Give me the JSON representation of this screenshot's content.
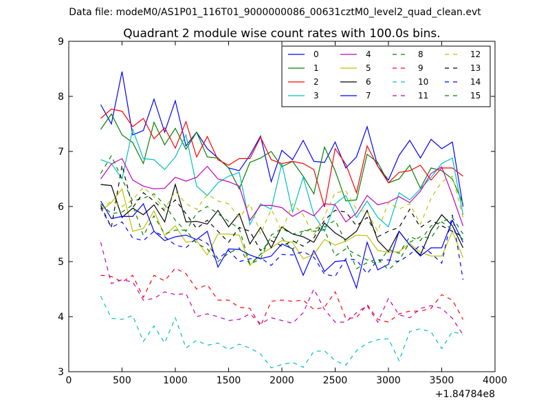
{
  "header": {
    "suptitle": "Data file: modeM0/AS1P01_116T01_9000000086_00631cztM0_level2_quad_clean.evt"
  },
  "chart_data": {
    "type": "line",
    "title": "Quadrant 2 module wise count rates with 100.0s bins.",
    "xlabel": "",
    "ylabel": "",
    "x_offset_label": "+1.84784e8",
    "xlim": [
      0,
      4000
    ],
    "ylim": [
      3,
      9
    ],
    "x_ticks": [
      0,
      500,
      1000,
      1500,
      2000,
      2500,
      3000,
      3500,
      4000
    ],
    "x_tick_labels": [
      "0",
      "500",
      "1000",
      "1500",
      "2000",
      "2500",
      "3000",
      "3500",
      "4000"
    ],
    "y_ticks": [
      3,
      4,
      5,
      6,
      7,
      8,
      9
    ],
    "y_tick_labels": [
      "3",
      "4",
      "5",
      "6",
      "7",
      "8",
      "9"
    ],
    "grid": false,
    "legend_position": "top-right",
    "x": [
      300,
      400,
      500,
      600,
      700,
      800,
      900,
      1000,
      1100,
      1200,
      1300,
      1400,
      1500,
      1600,
      1700,
      1800,
      1900,
      2000,
      2100,
      2200,
      2300,
      2400,
      2500,
      2600,
      2700,
      2800,
      2900,
      3000,
      3100,
      3200,
      3300,
      3400,
      3500,
      3600,
      3700
    ],
    "series": [
      {
        "name": "0",
        "color": "#0000ff",
        "dash": false,
        "values": [
          7.85,
          7.5,
          8.45,
          7.3,
          7.38,
          7.95,
          7.35,
          7.92,
          7.1,
          7.35,
          7.05,
          6.88,
          6.7,
          6.65,
          6.93,
          7.28,
          6.45,
          7.02,
          6.85,
          7.2,
          6.82,
          6.8,
          7.17,
          6.7,
          6.9,
          7.45,
          6.73,
          6.48,
          6.93,
          7.2,
          6.88,
          7.22,
          7.05,
          7.17,
          6.0
        ]
      },
      {
        "name": "1",
        "color": "#008000",
        "dash": false,
        "values": [
          7.4,
          7.68,
          7.3,
          7.16,
          6.78,
          7.53,
          7.12,
          7.42,
          7.04,
          7.35,
          6.9,
          6.88,
          6.7,
          6.32,
          6.8,
          6.88,
          7.0,
          6.72,
          6.82,
          6.55,
          6.23,
          7.08,
          6.65,
          6.1,
          6.12,
          6.95,
          6.8,
          6.43,
          6.5,
          6.75,
          6.33,
          6.7,
          6.65,
          6.5,
          6.05
        ]
      },
      {
        "name": "2",
        "color": "#ff0000",
        "dash": false,
        "values": [
          7.6,
          7.77,
          7.73,
          7.45,
          7.6,
          7.23,
          7.43,
          7.06,
          7.54,
          6.9,
          7.27,
          6.85,
          6.75,
          6.87,
          6.87,
          7.26,
          6.85,
          6.78,
          6.82,
          6.78,
          6.67,
          5.99,
          7.05,
          6.77,
          6.25,
          7.1,
          6.73,
          6.43,
          6.62,
          6.65,
          6.75,
          6.48,
          6.7,
          6.7,
          6.55
        ]
      },
      {
        "name": "3",
        "color": "#00bfbf",
        "dash": false,
        "values": [
          6.85,
          6.78,
          6.5,
          7.4,
          6.87,
          6.85,
          6.67,
          6.9,
          7.3,
          6.37,
          6.2,
          6.43,
          6.55,
          6.62,
          5.67,
          6.05,
          5.95,
          6.78,
          5.9,
          6.53,
          5.85,
          5.55,
          6.05,
          6.2,
          5.8,
          6.1,
          5.8,
          5.63,
          6.25,
          6.12,
          6.32,
          6.53,
          6.78,
          6.88,
          5.85
        ]
      },
      {
        "name": "4",
        "color": "#bf00bf",
        "dash": false,
        "values": [
          6.5,
          6.77,
          6.87,
          6.48,
          6.37,
          6.32,
          6.33,
          6.53,
          6.46,
          6.53,
          6.73,
          6.5,
          6.45,
          6.37,
          5.75,
          6.02,
          6.02,
          5.98,
          5.82,
          5.93,
          5.83,
          6.05,
          6.03,
          5.72,
          5.88,
          6.2,
          6.03,
          6.08,
          6.18,
          6.07,
          6.28,
          6.6,
          6.72,
          6.2,
          5.65
        ]
      },
      {
        "name": "5",
        "color": "#bfbf00",
        "dash": false,
        "values": [
          5.92,
          6.07,
          6.32,
          5.55,
          5.6,
          5.92,
          5.47,
          5.65,
          5.35,
          5.38,
          5.12,
          5.5,
          5.5,
          5.48,
          4.93,
          5.13,
          5.25,
          5.38,
          5.35,
          5.05,
          5.13,
          5.4,
          5.3,
          5.37,
          5.48,
          5.47,
          5.2,
          5.17,
          5.18,
          5.33,
          5.17,
          5.1,
          5.1,
          5.55,
          5.07
        ]
      },
      {
        "name": "6",
        "color": "#000000",
        "dash": false,
        "values": [
          6.4,
          6.38,
          5.8,
          5.97,
          5.85,
          6.03,
          5.72,
          6.4,
          5.72,
          5.73,
          5.68,
          5.93,
          5.63,
          5.87,
          5.32,
          5.62,
          5.25,
          5.63,
          5.5,
          5.45,
          5.35,
          5.7,
          5.52,
          5.4,
          5.55,
          5.93,
          5.38,
          5.18,
          5.55,
          5.3,
          5.12,
          5.57,
          5.85,
          5.65,
          5.25
        ]
      },
      {
        "name": "7",
        "color": "#0000ff",
        "dash": false,
        "values": [
          6.1,
          5.78,
          5.82,
          5.82,
          6.05,
          5.55,
          5.38,
          5.45,
          5.48,
          5.4,
          5.55,
          4.9,
          5.23,
          5.22,
          5.12,
          5.05,
          5.1,
          5.32,
          5.23,
          4.75,
          5.2,
          4.82,
          5.0,
          5.02,
          4.52,
          5.35,
          4.85,
          4.95,
          5.55,
          5.3,
          5.1,
          5.25,
          5.25,
          5.75,
          5.35
        ]
      },
      {
        "name": "8",
        "color": "#008000",
        "dash": true,
        "values": [
          6.6,
          6.92,
          6.5,
          6.1,
          6.15,
          6.23,
          6.03,
          5.75,
          5.55,
          5.88,
          6.0,
          5.87,
          5.73,
          5.6,
          4.95,
          5.05,
          5.48,
          5.6,
          5.5,
          5.55,
          5.6,
          5.63,
          5.75,
          5.35,
          4.87,
          4.98,
          5.05,
          4.85,
          5.02,
          5.35,
          5.45,
          5.43,
          5.72,
          5.58,
          5.4
        ]
      },
      {
        "name": "9",
        "color": "#ff0000",
        "dash": true,
        "values": [
          4.75,
          4.73,
          4.63,
          4.75,
          4.35,
          4.75,
          4.65,
          4.88,
          4.78,
          4.5,
          4.58,
          4.3,
          4.3,
          4.17,
          4.15,
          3.83,
          4.28,
          4.3,
          4.28,
          4.3,
          4.13,
          4.17,
          4.45,
          3.97,
          3.98,
          4.22,
          3.95,
          3.9,
          4.05,
          4.1,
          4.1,
          4.15,
          4.4,
          4.3,
          3.95
        ]
      },
      {
        "name": "10",
        "color": "#00bfbf",
        "dash": true,
        "values": [
          4.37,
          3.97,
          3.95,
          4.02,
          3.55,
          3.83,
          3.52,
          3.98,
          3.43,
          3.57,
          3.48,
          3.52,
          3.4,
          3.5,
          3.43,
          3.32,
          3.07,
          3.13,
          3.17,
          3.08,
          3.37,
          3.38,
          3.2,
          3.12,
          3.38,
          3.52,
          3.58,
          3.6,
          3.2,
          3.73,
          3.78,
          3.72,
          3.42,
          3.73,
          3.67
        ]
      },
      {
        "name": "11",
        "color": "#bf00bf",
        "dash": true,
        "values": [
          5.35,
          4.6,
          4.67,
          4.63,
          4.3,
          4.33,
          4.45,
          4.4,
          4.42,
          4.0,
          4.05,
          4.0,
          3.93,
          3.95,
          4.05,
          3.87,
          3.98,
          3.93,
          3.88,
          4.07,
          4.5,
          4.13,
          3.9,
          3.9,
          4.07,
          4.2,
          3.9,
          4.33,
          4.03,
          3.98,
          4.15,
          4.2,
          4.15,
          3.97,
          3.67
        ]
      },
      {
        "name": "12",
        "color": "#bfbf00",
        "dash": true,
        "values": [
          5.95,
          6.1,
          6.0,
          6.12,
          6.35,
          6.18,
          5.95,
          6.28,
          6.05,
          5.95,
          6.22,
          6.1,
          6.05,
          5.8,
          6.05,
          5.5,
          5.95,
          5.55,
          6.05,
          5.85,
          5.48,
          5.83,
          6.25,
          6.28,
          5.95,
          5.9,
          5.55,
          6.08,
          5.95,
          6.05,
          5.68,
          6.15,
          6.45,
          6.55,
          5.8
        ]
      },
      {
        "name": "13",
        "color": "#000000",
        "dash": true,
        "values": [
          6.02,
          5.62,
          6.75,
          5.98,
          6.25,
          6.1,
          5.92,
          6.12,
          5.87,
          5.6,
          5.75,
          5.55,
          5.35,
          5.62,
          5.55,
          5.2,
          5.38,
          5.28,
          5.38,
          5.28,
          5.43,
          5.75,
          5.93,
          5.9,
          5.65,
          5.8,
          5.45,
          5.55,
          5.62,
          5.95,
          5.62,
          5.75,
          5.65,
          5.55,
          5.45
        ]
      },
      {
        "name": "14",
        "color": "#0000ff",
        "dash": true,
        "values": [
          5.98,
          5.62,
          5.72,
          5.43,
          5.38,
          5.55,
          5.45,
          5.3,
          5.25,
          5.43,
          5.33,
          5.05,
          5.2,
          5.0,
          5.05,
          5.07,
          4.93,
          5.13,
          5.12,
          5.18,
          5.08,
          4.77,
          4.73,
          5.05,
          5.03,
          4.78,
          5.03,
          5.03,
          5.0,
          5.13,
          5.3,
          5.15,
          4.97,
          5.85,
          4.67
        ]
      },
      {
        "name": "15",
        "color": "#008000",
        "dash": true,
        "values": [
          6.05,
          5.87,
          5.9,
          6.03,
          5.47,
          5.83,
          5.5,
          5.57,
          5.57,
          5.33,
          5.23,
          5.0,
          5.15,
          5.25,
          4.95,
          5.13,
          5.45,
          5.43,
          5.2,
          5.57,
          5.55,
          5.58,
          5.1,
          5.23,
          5.13,
          5.03,
          4.95,
          5.22,
          5.15,
          5.45,
          5.38,
          5.65,
          5.72,
          5.8,
          5.5
        ]
      }
    ]
  }
}
